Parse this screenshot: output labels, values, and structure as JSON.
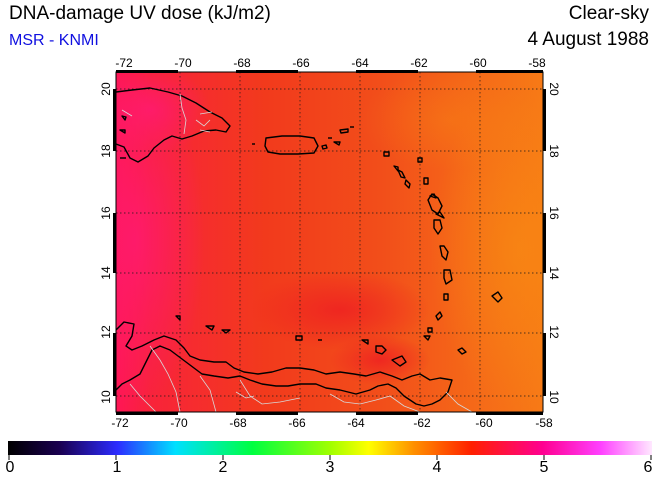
{
  "header": {
    "title": "DNA-damage UV dose (kJ/m2)",
    "source": "MSR - KNMI",
    "sky_condition": "Clear-sky",
    "date": "4 August 1988"
  },
  "map": {
    "longitude_ticks": [
      "-72",
      "-70",
      "-68",
      "-66",
      "-64",
      "-62",
      "-60",
      "-58"
    ],
    "latitude_ticks": [
      "10",
      "12",
      "14",
      "16",
      "18",
      "20"
    ],
    "lon_range": [
      -72,
      -58
    ],
    "lat_range": [
      9.5,
      20.5
    ],
    "gridlines": true
  },
  "colorbar": {
    "labels": [
      "0",
      "1",
      "2",
      "3",
      "4",
      "5",
      "6"
    ],
    "range": [
      0,
      6
    ],
    "stops": [
      "#000000",
      "#1a0050",
      "#2c2cff",
      "#00e0ff",
      "#00ff40",
      "#a0ff00",
      "#ffff00",
      "#ff9000",
      "#ff2000",
      "#ff0090",
      "#ff40ff",
      "#ffe8ff"
    ]
  },
  "colors": {
    "field_base": "#f23a1c",
    "field_west": "#ff1a5a",
    "field_east": "#f77a16",
    "land_outline": "#000000",
    "border": "#c8c8c8",
    "source_text": "#1010e0"
  }
}
